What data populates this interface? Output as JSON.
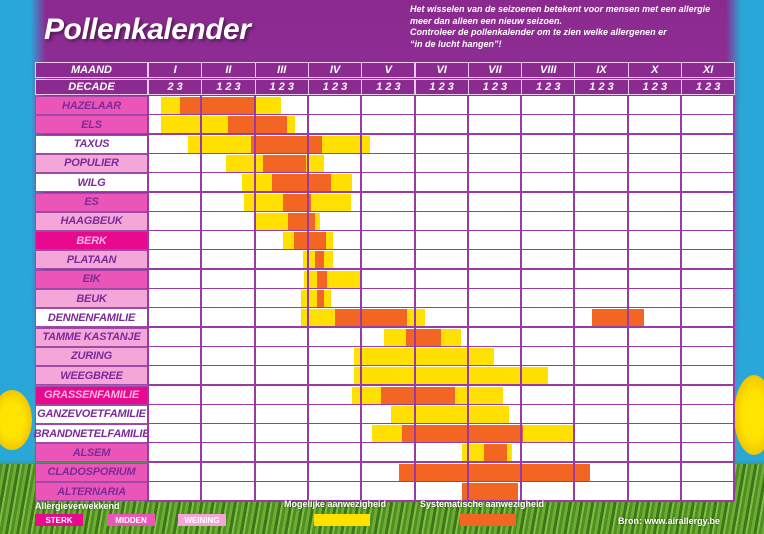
{
  "title": "Pollenkalender",
  "intro": [
    "Het wisselen van de seizoenen betekent voor mensen met een allergie",
    "meer dan alleen een nieuw seizoen.",
    "Controleer de pollenkalender om te zien welke allergenen er",
    "“in de lucht hangen”!"
  ],
  "header": {
    "maand_label": "MAAND",
    "decade_label": "DECADE",
    "months": [
      "I",
      "II",
      "III",
      "IV",
      "V",
      "VI",
      "VII",
      "VIII",
      "IX",
      "X",
      "XI"
    ],
    "decades": [
      "2 3",
      "1 2 3",
      "1 2 3",
      "1 2 3",
      "1 2 3",
      "1 2 3",
      "1 2 3",
      "1 2 3",
      "1 2 3",
      "1 2 3",
      "1 2 3"
    ]
  },
  "legend": {
    "allergen_title": "Allergieverwekkend",
    "levels": [
      {
        "label": "STERK",
        "color": "#e8098f"
      },
      {
        "label": "MIDDEN",
        "color": "#ec55b8"
      },
      {
        "label": "WEINING",
        "color": "#f4a6d9"
      }
    ],
    "possible_label": "Mogelijke aanwezigheid",
    "possible_color": "#ffe000",
    "systematic_label": "Systematische aanwezigheid",
    "systematic_color": "#f26522",
    "source": "Bron: www.airallergy.be"
  },
  "chart_data": {
    "type": "table",
    "title": "Pollenkalender",
    "xlabel": "MAAND / DECADE",
    "x_units": "decade index (0 = I-2, 1 = I-3, 2 = II-1, ... 31 = XI-3)",
    "legend": [
      "Mogelijke aanwezigheid (yellow)",
      "Systematische aanwezigheid (orange)"
    ],
    "rows": [
      {
        "name": "HAZELAAR",
        "level": "midden",
        "possible": [
          0.5,
          6.5
        ],
        "systematic": [
          1.2,
          5.0
        ]
      },
      {
        "name": "ELS",
        "level": "midden",
        "possible": [
          0.5,
          7.3
        ],
        "systematic": [
          3.5,
          6.8
        ]
      },
      {
        "name": "TAXUS",
        "level": "none",
        "possible": [
          1.5,
          11.5
        ],
        "systematic": [
          4.8,
          8.8
        ]
      },
      {
        "name": "POPULIER",
        "level": "weinig",
        "possible": [
          3.4,
          8.9
        ],
        "systematic": [
          5.5,
          7.9
        ]
      },
      {
        "name": "WILG",
        "level": "none",
        "possible": [
          4.3,
          10.5
        ],
        "systematic": [
          6.0,
          9.3
        ]
      },
      {
        "name": "ES",
        "level": "midden",
        "possible": [
          4.4,
          10.4
        ],
        "systematic": [
          6.6,
          8.2
        ]
      },
      {
        "name": "HAAGBEUK",
        "level": "weinig",
        "possible": [
          5.1,
          8.7
        ],
        "systematic": [
          6.9,
          8.4
        ]
      },
      {
        "name": "BERK",
        "level": "sterk",
        "possible": [
          6.6,
          9.4
        ],
        "systematic": [
          7.2,
          9.0
        ]
      },
      {
        "name": "PLATAAN",
        "level": "weinig",
        "possible": [
          7.7,
          9.4
        ],
        "systematic": [
          8.4,
          8.9
        ]
      },
      {
        "name": "EIK",
        "level": "midden",
        "possible": [
          7.8,
          11.0
        ],
        "systematic": [
          8.5,
          9.1
        ]
      },
      {
        "name": "BEUK",
        "level": "weinig",
        "possible": [
          7.6,
          9.3
        ],
        "systematic": [
          8.5,
          8.9
        ]
      },
      {
        "name": "DENNENFAMILIE",
        "level": "none",
        "possible": [
          7.6,
          14.6
        ],
        "systematic": [
          [
            9.5,
            13.6
          ],
          [
            24.0,
            26.9
          ]
        ]
      },
      {
        "name": "TAMME KASTANJE",
        "level": "weinig",
        "possible": [
          12.3,
          16.6
        ],
        "systematic": [
          13.5,
          15.5
        ]
      },
      {
        "name": "ZURING",
        "level": "weinig",
        "possible": [
          10.6,
          18.5
        ],
        "systematic": null
      },
      {
        "name": "WEEGBREE",
        "level": "weinig",
        "possible": [
          10.6,
          21.5
        ],
        "systematic": null
      },
      {
        "name": "GRASSENFAMILIE",
        "level": "sterk",
        "possible": [
          10.5,
          19.0
        ],
        "systematic": [
          12.1,
          16.3
        ]
      },
      {
        "name": "GANZEVOETFAMILIE",
        "level": "none",
        "possible": [
          12.7,
          19.3
        ],
        "systematic": null
      },
      {
        "name": "BRANDNETELFAMILIE",
        "level": "none",
        "possible": [
          11.6,
          23.0
        ],
        "systematic": [
          13.3,
          20.1
        ]
      },
      {
        "name": "ALSEM",
        "level": "midden",
        "possible": [
          16.7,
          19.5
        ],
        "systematic": [
          17.9,
          19.2
        ]
      },
      {
        "name": "CLADOSPORIUM",
        "level": "midden",
        "possible": null,
        "systematic": [
          13.1,
          23.9
        ]
      },
      {
        "name": "ALTERNARIA",
        "level": "midden",
        "possible": null,
        "systematic": [
          16.7,
          19.8
        ]
      }
    ]
  }
}
